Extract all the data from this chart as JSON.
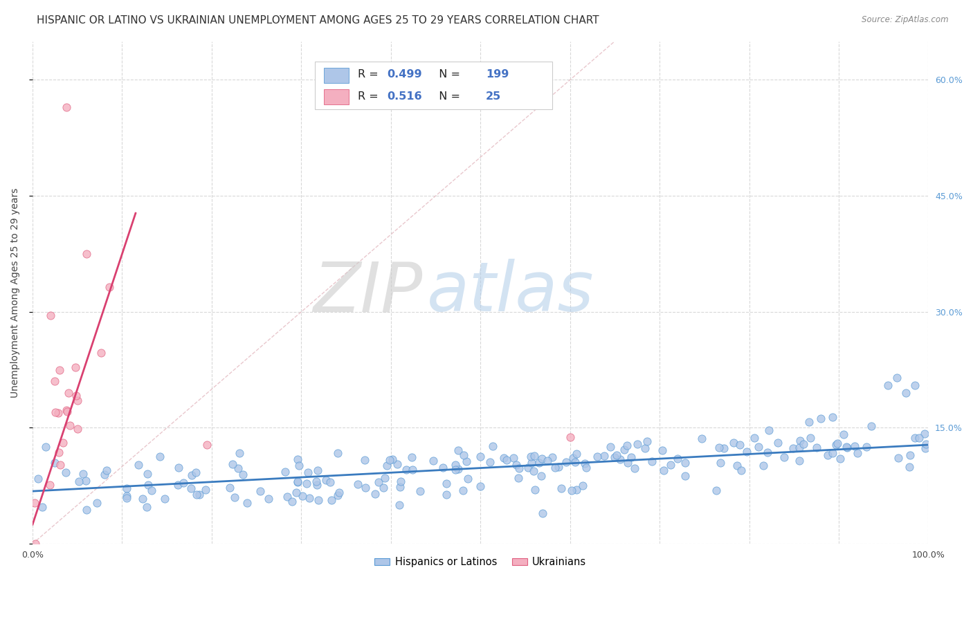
{
  "title": "HISPANIC OR LATINO VS UKRAINIAN UNEMPLOYMENT AMONG AGES 25 TO 29 YEARS CORRELATION CHART",
  "source": "Source: ZipAtlas.com",
  "ylabel": "Unemployment Among Ages 25 to 29 years",
  "watermark_zip": "ZIP",
  "watermark_atlas": "atlas",
  "xlim": [
    0,
    1.0
  ],
  "ylim": [
    0,
    0.65
  ],
  "xtick_vals": [
    0.0,
    0.1,
    0.2,
    0.3,
    0.4,
    0.5,
    0.6,
    0.7,
    0.8,
    0.9,
    1.0
  ],
  "yticks_right": [
    0.0,
    0.15,
    0.3,
    0.45,
    0.6
  ],
  "yticklabels_right": [
    "",
    "15.0%",
    "30.0%",
    "45.0%",
    "60.0%"
  ],
  "blue_R": "0.499",
  "blue_N": "199",
  "pink_R": "0.516",
  "pink_N": "25",
  "blue_fill_color": "#aec6e8",
  "blue_edge_color": "#5b9bd5",
  "pink_fill_color": "#f4afc0",
  "pink_edge_color": "#e06080",
  "blue_line_color": "#3a7bbf",
  "pink_line_color": "#d94070",
  "diag_line_color": "#e0b0b8",
  "legend_labels": [
    "Hispanics or Latinos",
    "Ukrainians"
  ],
  "background_color": "#ffffff",
  "grid_color": "#d8d8d8",
  "title_fontsize": 11,
  "axis_fontsize": 10,
  "tick_fontsize": 9,
  "blue_trend_slope": 0.06,
  "blue_trend_intercept": 0.068,
  "pink_trend_x_end": 0.115,
  "pink_trend_slope": 3.5,
  "pink_trend_intercept": 0.025
}
